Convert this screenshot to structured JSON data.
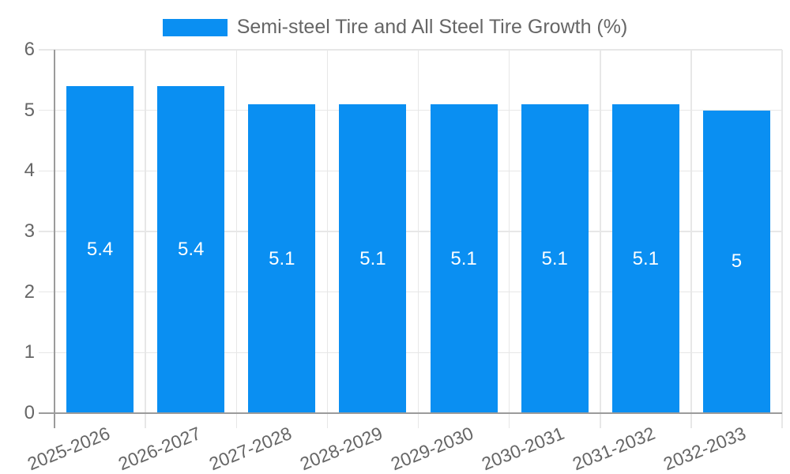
{
  "chart_data": {
    "type": "bar",
    "title": "Semi-steel Tire and All Steel Tire Growth (%)",
    "categories": [
      "2025-2026",
      "2026-2027",
      "2027-2028",
      "2028-2029",
      "2029-2030",
      "2030-2031",
      "2031-2032",
      "2032-2033"
    ],
    "values": [
      5.4,
      5.4,
      5.1,
      5.1,
      5.1,
      5.1,
      5.1,
      5
    ],
    "value_labels": [
      "5.4",
      "5.4",
      "5.1",
      "5.1",
      "5.1",
      "5.1",
      "5.1",
      "5"
    ],
    "xlabel": "",
    "ylabel": "",
    "ylim": [
      0,
      6
    ],
    "ytick_labels": [
      "0",
      "1",
      "2",
      "3",
      "4",
      "5",
      "6"
    ],
    "grid": true,
    "legend_position": "top",
    "colors": {
      "bar": "#0a8ff2",
      "grid": "#e7e7e7",
      "axis": "#9b9b9b",
      "text": "#666666",
      "value_text": "#ffffff",
      "background": "#ffffff"
    }
  }
}
